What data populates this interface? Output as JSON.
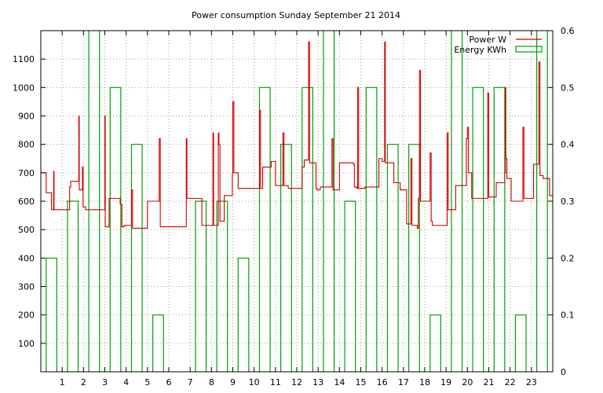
{
  "chart_data": {
    "type": "line",
    "title": "Power consumption Sunday September 21 2014",
    "grid": true,
    "legend_position": "top-right",
    "x_axis": {
      "range": [
        0,
        24
      ],
      "ticks": [
        1,
        2,
        3,
        4,
        5,
        6,
        7,
        8,
        9,
        10,
        11,
        12,
        13,
        14,
        15,
        16,
        17,
        18,
        19,
        20,
        21,
        22,
        23
      ]
    },
    "y_axis": {
      "range": [
        0,
        1200
      ],
      "ticks": [
        100,
        200,
        300,
        400,
        500,
        600,
        700,
        800,
        900,
        1000,
        1100
      ]
    },
    "y2_axis": {
      "range": [
        0,
        0.6
      ],
      "ticks": [
        "0",
        "0.1",
        "0.2",
        "0.3",
        "0.4",
        "0.5",
        "0.6"
      ]
    },
    "series": [
      {
        "name": "Power W",
        "axis": "y",
        "color": "#cc0000",
        "style": "step-line",
        "points": [
          [
            0.0,
            700
          ],
          [
            0.25,
            630
          ],
          [
            0.5,
            570
          ],
          [
            0.6,
            705
          ],
          [
            0.62,
            570
          ],
          [
            1.3,
            570
          ],
          [
            1.35,
            650
          ],
          [
            1.4,
            670
          ],
          [
            1.75,
            670
          ],
          [
            1.78,
            900
          ],
          [
            1.8,
            640
          ],
          [
            1.9,
            640
          ],
          [
            1.95,
            720
          ],
          [
            1.98,
            580
          ],
          [
            2.1,
            570
          ],
          [
            2.5,
            570
          ],
          [
            2.95,
            570
          ],
          [
            3.0,
            900
          ],
          [
            3.02,
            510
          ],
          [
            3.15,
            510
          ],
          [
            3.2,
            610
          ],
          [
            3.7,
            610
          ],
          [
            3.72,
            590
          ],
          [
            3.8,
            510
          ],
          [
            3.9,
            515
          ],
          [
            4.2,
            515
          ],
          [
            4.25,
            640
          ],
          [
            4.3,
            505
          ],
          [
            4.5,
            505
          ],
          [
            4.95,
            505
          ],
          [
            5.0,
            600
          ],
          [
            5.5,
            600
          ],
          [
            5.55,
            820
          ],
          [
            5.6,
            510
          ],
          [
            5.8,
            510
          ],
          [
            6.8,
            510
          ],
          [
            6.82,
            820
          ],
          [
            6.85,
            610
          ],
          [
            7.5,
            610
          ],
          [
            7.55,
            515
          ],
          [
            7.7,
            515
          ],
          [
            8.05,
            515
          ],
          [
            8.07,
            840
          ],
          [
            8.1,
            515
          ],
          [
            8.3,
            515
          ],
          [
            8.32,
            840
          ],
          [
            8.35,
            800
          ],
          [
            8.4,
            530
          ],
          [
            8.6,
            620
          ],
          [
            8.95,
            620
          ],
          [
            8.98,
            700
          ],
          [
            9.0,
            950
          ],
          [
            9.05,
            700
          ],
          [
            9.2,
            700
          ],
          [
            9.25,
            645
          ],
          [
            10.0,
            645
          ],
          [
            10.2,
            645
          ],
          [
            10.25,
            920
          ],
          [
            10.3,
            645
          ],
          [
            10.4,
            720
          ],
          [
            10.75,
            720
          ],
          [
            10.8,
            740
          ],
          [
            10.95,
            740
          ],
          [
            11.0,
            655
          ],
          [
            11.3,
            655
          ],
          [
            11.35,
            840
          ],
          [
            11.4,
            655
          ],
          [
            11.6,
            645
          ],
          [
            12.2,
            645
          ],
          [
            12.25,
            720
          ],
          [
            12.35,
            745
          ],
          [
            12.5,
            745
          ],
          [
            12.55,
            1160
          ],
          [
            12.6,
            735
          ],
          [
            12.85,
            735
          ],
          [
            12.9,
            645
          ],
          [
            12.95,
            640
          ],
          [
            13.1,
            650
          ],
          [
            13.6,
            650
          ],
          [
            13.65,
            820
          ],
          [
            13.7,
            640
          ],
          [
            13.9,
            640
          ],
          [
            14.0,
            735
          ],
          [
            14.5,
            735
          ],
          [
            14.65,
            730
          ],
          [
            14.7,
            650
          ],
          [
            14.8,
            645
          ],
          [
            14.85,
            1000
          ],
          [
            14.9,
            645
          ],
          [
            15.2,
            650
          ],
          [
            15.8,
            650
          ],
          [
            15.85,
            750
          ],
          [
            16.0,
            740
          ],
          [
            16.1,
            740
          ],
          [
            16.12,
            1160
          ],
          [
            16.15,
            735
          ],
          [
            16.5,
            735
          ],
          [
            16.55,
            665
          ],
          [
            16.8,
            665
          ],
          [
            16.85,
            640
          ],
          [
            17.1,
            640
          ],
          [
            17.15,
            520
          ],
          [
            17.3,
            520
          ],
          [
            17.35,
            750
          ],
          [
            17.4,
            515
          ],
          [
            17.6,
            515
          ],
          [
            17.65,
            505
          ],
          [
            17.7,
            610
          ],
          [
            17.75,
            1060
          ],
          [
            17.8,
            600
          ],
          [
            18.2,
            600
          ],
          [
            18.25,
            770
          ],
          [
            18.3,
            530
          ],
          [
            18.35,
            515
          ],
          [
            18.5,
            515
          ],
          [
            19.0,
            515
          ],
          [
            19.05,
            840
          ],
          [
            19.1,
            570
          ],
          [
            19.4,
            570
          ],
          [
            19.45,
            655
          ],
          [
            19.9,
            655
          ],
          [
            19.95,
            820
          ],
          [
            20.0,
            860
          ],
          [
            20.05,
            700
          ],
          [
            20.15,
            700
          ],
          [
            20.2,
            610
          ],
          [
            20.9,
            610
          ],
          [
            20.95,
            980
          ],
          [
            21.0,
            615
          ],
          [
            21.3,
            615
          ],
          [
            21.35,
            665
          ],
          [
            21.7,
            665
          ],
          [
            21.75,
            700
          ],
          [
            21.78,
            1000
          ],
          [
            21.8,
            750
          ],
          [
            21.85,
            680
          ],
          [
            22.0,
            680
          ],
          [
            22.05,
            600
          ],
          [
            22.55,
            600
          ],
          [
            22.6,
            860
          ],
          [
            22.65,
            610
          ],
          [
            23.0,
            610
          ],
          [
            23.1,
            730
          ],
          [
            23.3,
            730
          ],
          [
            23.35,
            1090
          ],
          [
            23.4,
            690
          ],
          [
            23.55,
            680
          ],
          [
            23.8,
            680
          ],
          [
            23.85,
            620
          ],
          [
            24.0,
            620
          ]
        ]
      },
      {
        "name": "Energy KWh",
        "axis": "y2",
        "color": "#00a000",
        "style": "boxes",
        "x_values": [
          0,
          1,
          2,
          3,
          4,
          5,
          6,
          7,
          8,
          9,
          10,
          11,
          12,
          13,
          14,
          15,
          16,
          17,
          18,
          19,
          20,
          21,
          22,
          23
        ],
        "values": [
          0.2,
          0.3,
          0.65,
          0.5,
          0.4,
          0.1,
          0,
          0.3,
          0.3,
          0.2,
          0.5,
          0.4,
          0.5,
          0.65,
          0.3,
          0.5,
          0.4,
          0.4,
          0.1,
          0.65,
          0.5,
          0.5,
          0.1,
          0.65
        ]
      }
    ]
  }
}
